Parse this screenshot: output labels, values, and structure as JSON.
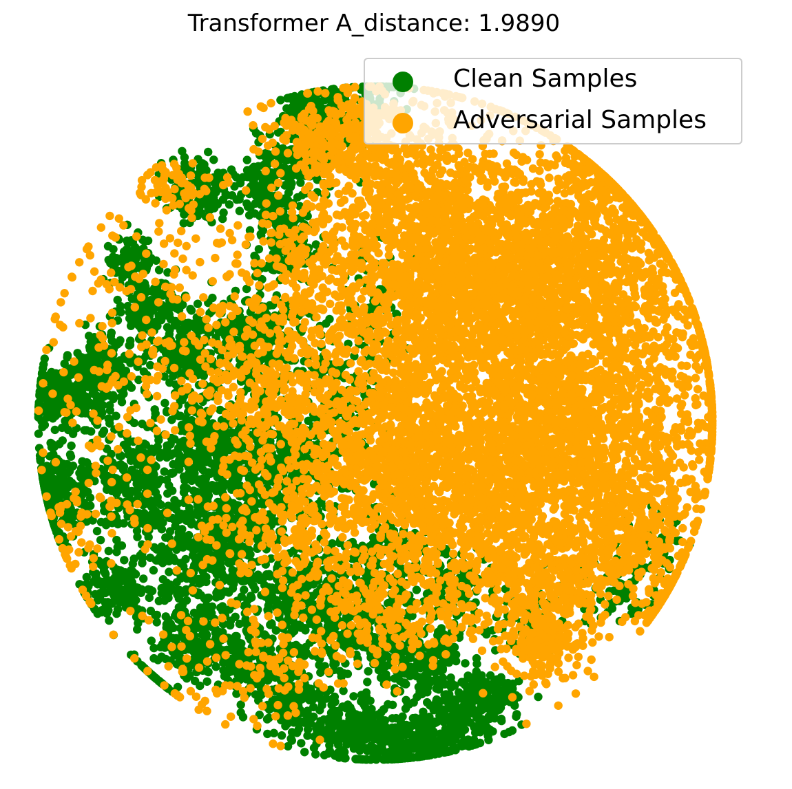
{
  "chart_data": {
    "type": "scatter",
    "title": "Transformer A_distance: 1.9890",
    "xlabel": "",
    "ylabel": "",
    "axes_visible": false,
    "grid": false,
    "xlim": [
      -60,
      60
    ],
    "ylim": [
      -60,
      60
    ],
    "legend": {
      "placement": "top-right"
    },
    "series": [
      {
        "name": "Clean Samples",
        "color": "#008000",
        "clusters": [
          {
            "cx": -52,
            "cy": 4,
            "rx": 5,
            "ry": 4,
            "n": 260
          },
          {
            "cx": -54,
            "cy": -12,
            "rx": 4,
            "ry": 6,
            "n": 260
          },
          {
            "cx": -46,
            "cy": 10,
            "rx": 4,
            "ry": 4,
            "n": 160
          },
          {
            "cx": -44,
            "cy": -28,
            "rx": 4,
            "ry": 4,
            "n": 160
          },
          {
            "cx": -40,
            "cy": -10,
            "rx": 5,
            "ry": 8,
            "n": 220
          },
          {
            "cx": -38,
            "cy": 20,
            "rx": 4,
            "ry": 4,
            "n": 140
          },
          {
            "cx": -30,
            "cy": 40,
            "rx": 4,
            "ry": 4,
            "n": 130
          },
          {
            "cx": -32,
            "cy": 12,
            "rx": 5,
            "ry": 5,
            "n": 180
          },
          {
            "cx": -28,
            "cy": -4,
            "rx": 7,
            "ry": 8,
            "n": 360
          },
          {
            "cx": -26,
            "cy": -18,
            "rx": 7,
            "ry": 6,
            "n": 300
          },
          {
            "cx": -20,
            "cy": 14,
            "rx": 6,
            "ry": 6,
            "n": 220
          },
          {
            "cx": -18,
            "cy": 40,
            "rx": 4,
            "ry": 5,
            "n": 160
          },
          {
            "cx": -15,
            "cy": 30,
            "rx": 4,
            "ry": 4,
            "n": 140
          },
          {
            "cx": -12,
            "cy": 46,
            "rx": 4,
            "ry": 4,
            "n": 130
          },
          {
            "cx": -10,
            "cy": 54,
            "rx": 4,
            "ry": 3,
            "n": 110
          },
          {
            "cx": -16,
            "cy": -8,
            "rx": 8,
            "ry": 8,
            "n": 320
          },
          {
            "cx": -12,
            "cy": -28,
            "rx": 8,
            "ry": 6,
            "n": 300
          },
          {
            "cx": -30,
            "cy": -38,
            "rx": 5,
            "ry": 4,
            "n": 180
          },
          {
            "cx": -20,
            "cy": -40,
            "rx": 5,
            "ry": 4,
            "n": 180
          },
          {
            "cx": -14,
            "cy": -48,
            "rx": 4,
            "ry": 4,
            "n": 160
          },
          {
            "cx": -4,
            "cy": -52,
            "rx": 5,
            "ry": 4,
            "n": 200
          },
          {
            "cx": 6,
            "cy": -54,
            "rx": 6,
            "ry": 4,
            "n": 240
          },
          {
            "cx": 14,
            "cy": -50,
            "rx": 5,
            "ry": 4,
            "n": 160
          },
          {
            "cx": -4,
            "cy": -36,
            "rx": 7,
            "ry": 5,
            "n": 220
          },
          {
            "cx": 8,
            "cy": -40,
            "rx": 6,
            "ry": 5,
            "n": 200
          },
          {
            "cx": 20,
            "cy": -46,
            "rx": 4,
            "ry": 3,
            "n": 120
          },
          {
            "cx": 2,
            "cy": -22,
            "rx": 6,
            "ry": 6,
            "n": 160
          },
          {
            "cx": 14,
            "cy": -28,
            "rx": 5,
            "ry": 5,
            "n": 100
          },
          {
            "cx": 26,
            "cy": -34,
            "rx": 4,
            "ry": 4,
            "n": 80
          },
          {
            "cx": 40,
            "cy": -28,
            "rx": 6,
            "ry": 4,
            "n": 80
          },
          {
            "cx": 48,
            "cy": -20,
            "rx": 4,
            "ry": 4,
            "n": 50
          },
          {
            "cx": -6,
            "cy": 4,
            "rx": 6,
            "ry": 8,
            "n": 120
          },
          {
            "cx": 0,
            "cy": 20,
            "rx": 6,
            "ry": 8,
            "n": 80
          },
          {
            "cx": -6,
            "cy": 52,
            "rx": 5,
            "ry": 4,
            "n": 60
          },
          {
            "cx": 0,
            "cy": 56,
            "rx": 3,
            "ry": 3,
            "n": 50
          },
          {
            "cx": -30,
            "cy": -26,
            "rx": 8,
            "ry": 8,
            "n": 200
          },
          {
            "cx": -42,
            "cy": 28,
            "rx": 3,
            "ry": 3,
            "n": 80
          },
          {
            "cx": -40,
            "cy": -46,
            "rx": 3,
            "ry": 3,
            "n": 60
          }
        ]
      },
      {
        "name": "Adversarial Samples",
        "color": "#ffa500",
        "clusters": [
          {
            "cx": 20,
            "cy": 10,
            "rx": 30,
            "ry": 24,
            "n": 3000
          },
          {
            "cx": 26,
            "cy": 26,
            "rx": 18,
            "ry": 12,
            "n": 1100
          },
          {
            "cx": 34,
            "cy": -2,
            "rx": 16,
            "ry": 18,
            "n": 1000
          },
          {
            "cx": 8,
            "cy": 34,
            "rx": 12,
            "ry": 16,
            "n": 800
          },
          {
            "cx": -6,
            "cy": 48,
            "rx": 8,
            "ry": 6,
            "n": 300
          },
          {
            "cx": 14,
            "cy": -14,
            "rx": 14,
            "ry": 10,
            "n": 600
          },
          {
            "cx": 0,
            "cy": -4,
            "rx": 10,
            "ry": 10,
            "n": 400
          },
          {
            "cx": 30,
            "cy": -26,
            "rx": 10,
            "ry": 8,
            "n": 350
          },
          {
            "cx": 44,
            "cy": -18,
            "rx": 6,
            "ry": 6,
            "n": 180
          },
          {
            "cx": 50,
            "cy": -30,
            "rx": 4,
            "ry": 4,
            "n": 100
          },
          {
            "cx": 28,
            "cy": -38,
            "rx": 5,
            "ry": 5,
            "n": 160
          },
          {
            "cx": 40,
            "cy": 40,
            "rx": 8,
            "ry": 6,
            "n": 200
          },
          {
            "cx": 4,
            "cy": -32,
            "rx": 10,
            "ry": 6,
            "n": 220
          },
          {
            "cx": -14,
            "cy": -18,
            "rx": 10,
            "ry": 8,
            "n": 200
          },
          {
            "cx": -20,
            "cy": 6,
            "rx": 8,
            "ry": 10,
            "n": 220
          },
          {
            "cx": -12,
            "cy": 26,
            "rx": 6,
            "ry": 8,
            "n": 140
          },
          {
            "cx": -40,
            "cy": 14,
            "rx": 14,
            "ry": 18,
            "n": 160
          },
          {
            "cx": -34,
            "cy": 40,
            "rx": 5,
            "ry": 3,
            "n": 60
          },
          {
            "cx": -20,
            "cy": -40,
            "rx": 14,
            "ry": 10,
            "n": 140
          },
          {
            "cx": -48,
            "cy": -14,
            "rx": 8,
            "ry": 14,
            "n": 80
          }
        ]
      }
    ]
  }
}
